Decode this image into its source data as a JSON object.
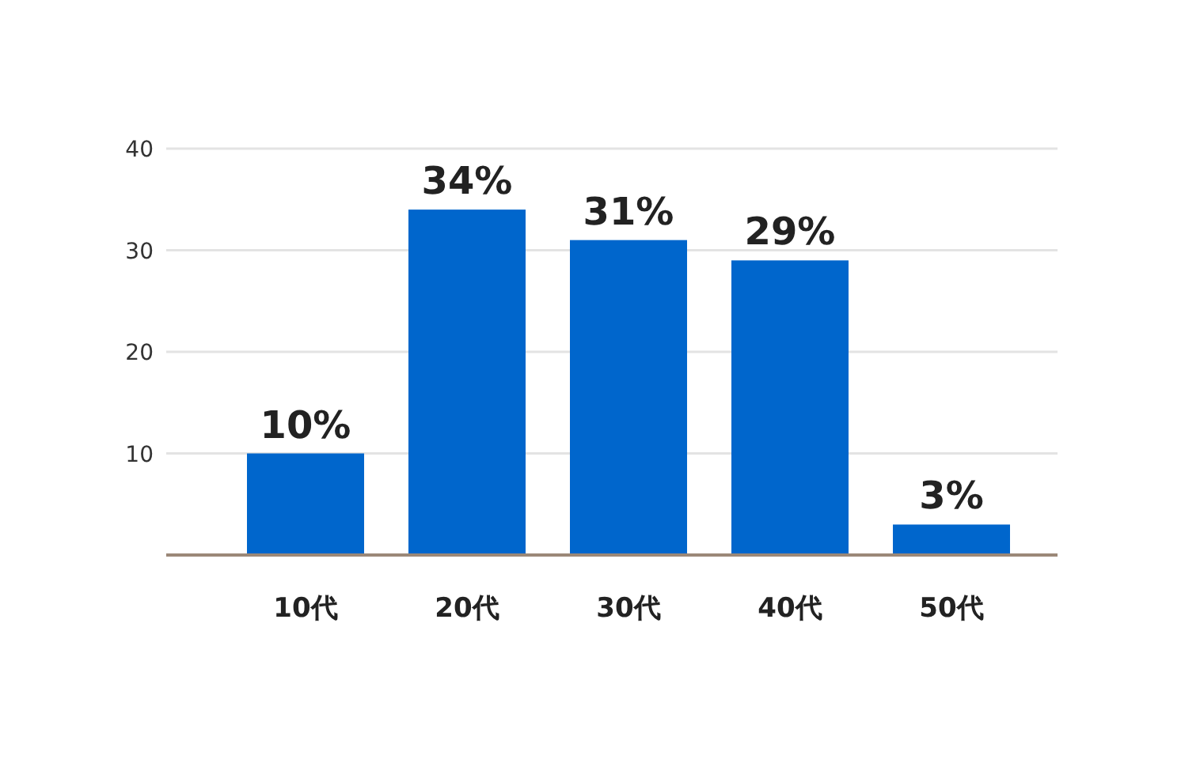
{
  "chart_data": {
    "type": "bar",
    "categories": [
      "10代",
      "20代",
      "30代",
      "40代",
      "50代"
    ],
    "values": [
      10,
      34,
      31,
      29,
      3
    ],
    "color": "#0066cc",
    "ylim": [
      0,
      40
    ],
    "yticks": [
      10,
      20,
      30,
      40
    ],
    "grid": "y",
    "value_labels": [
      "10%",
      "34%",
      "31%",
      "29%",
      "3%"
    ]
  }
}
